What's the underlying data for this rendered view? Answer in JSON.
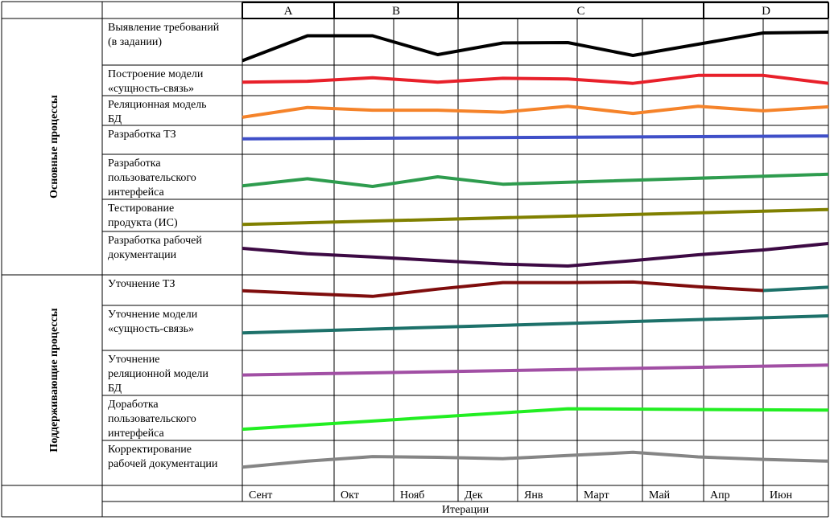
{
  "chart_data": {
    "type": "line",
    "x_title": "Итерации",
    "months": [
      "Сент",
      "Окт",
      "Нояб",
      "Дек",
      "Янв",
      "Март",
      "Май",
      "Апр",
      "Июн"
    ],
    "phases": [
      {
        "label": "A",
        "start": 0,
        "end": 1
      },
      {
        "label": "B",
        "start": 1,
        "end": 3
      },
      {
        "label": "C",
        "start": 3,
        "end": 7
      },
      {
        "label": "D",
        "start": 7,
        "end": 9
      }
    ],
    "groups": [
      {
        "label": "Основные процессы",
        "rows": [
          0,
          1,
          2,
          3,
          4,
          5,
          6
        ]
      },
      {
        "label": "Поддерживающие процессы",
        "rows": [
          7,
          8,
          9,
          10,
          11
        ]
      }
    ],
    "y_range": [
      0,
      1
    ],
    "rows": [
      {
        "label": [
          "Выявление требований",
          "(в задании)"
        ],
        "color": "#000000",
        "points": [
          [
            0,
            0.03
          ],
          [
            1,
            0.65
          ],
          [
            2,
            0.65
          ],
          [
            3,
            0.18
          ],
          [
            4,
            0.47
          ],
          [
            5,
            0.48
          ],
          [
            6,
            0.16
          ],
          [
            7,
            0.44
          ],
          [
            8,
            0.72
          ],
          [
            9,
            0.74
          ]
        ]
      },
      {
        "label": [
          "Построение модели",
          "«сущность-связь»"
        ],
        "color": "#e8202a",
        "points": [
          [
            0,
            0.4
          ],
          [
            1,
            0.45
          ],
          [
            2,
            0.65
          ],
          [
            3,
            0.4
          ],
          [
            4,
            0.62
          ],
          [
            5,
            0.58
          ],
          [
            6,
            0.33
          ],
          [
            7,
            0.78
          ],
          [
            8,
            0.78
          ],
          [
            9,
            0.33
          ]
        ]
      },
      {
        "label": [
          "Реляционная модель",
          "БД"
        ],
        "color": "#f5832a",
        "points": [
          [
            0,
            0.1
          ],
          [
            1,
            0.68
          ],
          [
            2,
            0.52
          ],
          [
            3,
            0.52
          ],
          [
            4,
            0.4
          ],
          [
            5,
            0.75
          ],
          [
            6,
            0.33
          ],
          [
            7,
            0.75
          ],
          [
            8,
            0.48
          ],
          [
            9,
            0.72
          ]
        ]
      },
      {
        "label": [
          "Разработка ТЗ"
        ],
        "color": "#3f4fc8",
        "points": [
          [
            0,
            0.55
          ],
          [
            9,
            0.7
          ]
        ]
      },
      {
        "label": [
          "Разработка",
          "пользовательского",
          "интерфейса"
        ],
        "color": "#2e9c4e",
        "points": [
          [
            0,
            0.22
          ],
          [
            1,
            0.44
          ],
          [
            2,
            0.2
          ],
          [
            3,
            0.5
          ],
          [
            4,
            0.27
          ],
          [
            9,
            0.58
          ]
        ]
      },
      {
        "label": [
          "Тестирование",
          "продукта (ИС)"
        ],
        "color": "#808000",
        "points": [
          [
            0,
            0.1
          ],
          [
            9,
            0.76
          ]
        ]
      },
      {
        "label": [
          "Разработка рабочей",
          "документации"
        ],
        "color": "#3d0a44",
        "points": [
          [
            0,
            0.65
          ],
          [
            1,
            0.48
          ],
          [
            2,
            0.38
          ],
          [
            3,
            0.27
          ],
          [
            4,
            0.16
          ],
          [
            5,
            0.1
          ],
          [
            6,
            0.27
          ],
          [
            7,
            0.45
          ],
          [
            8,
            0.6
          ],
          [
            9,
            0.8
          ]
        ]
      },
      {
        "label": [
          "Уточнение ТЗ"
        ],
        "color": "#7f0d0d",
        "points": [
          [
            0,
            0.47
          ],
          [
            1,
            0.33
          ],
          [
            2,
            0.2
          ],
          [
            3,
            0.55
          ],
          [
            4,
            0.86
          ],
          [
            5,
            0.86
          ],
          [
            6,
            0.89
          ],
          [
            7,
            0.66
          ],
          [
            8,
            0.48
          ]
        ]
      },
      {
        "label": [
          "Уточнение модели",
          "«сущность-связь»"
        ],
        "color": "#1d716a",
        "points": [
          [
            0,
            0.36
          ],
          [
            9,
            0.84
          ]
        ]
      },
      {
        "label": [
          "Уточнение",
          "реляционной модели",
          "БД"
        ],
        "color": "#a14fa4",
        "points": [
          [
            0,
            0.44
          ],
          [
            9,
            0.72
          ]
        ]
      },
      {
        "label": [
          "Доработка",
          "пользовательского",
          "интерфейса"
        ],
        "color": "#22ee22",
        "points": [
          [
            0,
            0.18
          ],
          [
            5,
            0.76
          ],
          [
            9,
            0.72
          ]
        ]
      },
      {
        "label": [
          "Корректирование",
          "рабочей документации"
        ],
        "color": "#858585",
        "points": [
          [
            0,
            0.38
          ],
          [
            1,
            0.55
          ],
          [
            2,
            0.68
          ],
          [
            3,
            0.66
          ],
          [
            4,
            0.62
          ],
          [
            5,
            0.71
          ],
          [
            6,
            0.8
          ],
          [
            7,
            0.67
          ],
          [
            8,
            0.6
          ],
          [
            9,
            0.55
          ]
        ]
      }
    ],
    "extra_series": [
      {
        "color": "#1d716a",
        "points": [
          [
            8,
            0.48
          ],
          [
            9,
            0.64
          ]
        ]
      }
    ]
  }
}
